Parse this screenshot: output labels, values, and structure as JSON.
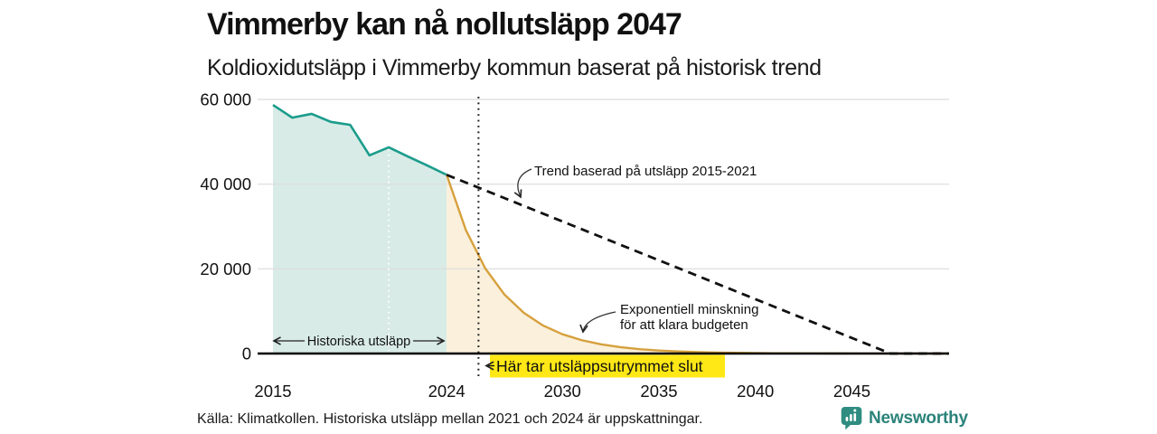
{
  "header": {
    "title": "Vimmerby kan nå nollutsläpp 2047",
    "subtitle": "Koldioxidutsläpp i Vimmerby kommun baserat på historisk trend"
  },
  "footer": {
    "source": "Källa: Klimatkollen. Historiska utsläpp mellan 2021 och 2024 är uppskattningar.",
    "brand": "Newsworthy",
    "brand_icon": "newsworthy-speech-bubble-bars-icon",
    "brand_color": "#2B837A"
  },
  "annotations": {
    "trend_label": "Trend baserad på utsläpp 2015-2021",
    "exp_label_line1": "Exponentiell minskning",
    "exp_label_line2": "för att klara budgeten",
    "historical_label": "Historiska utsläpp",
    "budget_end_label": "Här tar utsläppsutrymmet slut",
    "budget_end_highlight": "#FFE816"
  },
  "colors": {
    "historical_line": "#1B9C8C",
    "historical_fill": "#D8EBE6",
    "budget_line": "#D6A03C",
    "budget_fill": "#FAF0DC",
    "trend_line": "#111111",
    "gridline": "#DCDCDC",
    "axis": "#000000",
    "estimates_marker": "#FFFFFF"
  },
  "chart_data": {
    "type": "area",
    "x_unit": "year",
    "xlim": [
      2015,
      2050
    ],
    "ylim": [
      0,
      60000
    ],
    "xticks": [
      2015,
      2024,
      2030,
      2035,
      2040,
      2045
    ],
    "yticks": [
      0,
      20000,
      40000,
      60000
    ],
    "ytick_labels": [
      "0",
      "20 000",
      "40 000",
      "60 000"
    ],
    "grid": "horizontal",
    "series": [
      {
        "name": "Historiska utsläpp",
        "type": "area",
        "line_color": "#1B9C8C",
        "fill_color": "#D8EBE6",
        "x": [
          2015,
          2016,
          2017,
          2018,
          2019,
          2020,
          2021,
          2022,
          2023,
          2024
        ],
        "values": [
          58700,
          55700,
          56600,
          54700,
          54000,
          46800,
          48700,
          46500,
          44400,
          42200
        ]
      },
      {
        "name": "Exponentiell minskning för att klara budgeten",
        "type": "area",
        "line_color": "#D6A03C",
        "fill_color": "#FAF0DC",
        "x": [
          2024,
          2025,
          2026,
          2027,
          2028,
          2029,
          2030,
          2031,
          2032,
          2033,
          2034,
          2035,
          2036,
          2037,
          2038,
          2039,
          2040,
          2041,
          2042,
          2043,
          2044,
          2045,
          2046,
          2047,
          2048,
          2049,
          2050
        ],
        "values": [
          42200,
          29100,
          20100,
          13900,
          9600,
          6600,
          4550,
          3150,
          2170,
          1500,
          1030,
          710,
          490,
          340,
          235,
          160,
          110,
          77,
          53,
          37,
          25,
          17,
          12,
          8,
          6,
          4,
          3
        ]
      },
      {
        "name": "Trend baserad på utsläpp 2015-2021",
        "type": "line",
        "style": "dashed",
        "line_color": "#111111",
        "x": [
          2024,
          2047,
          2050
        ],
        "values": [
          42200,
          0,
          0
        ]
      }
    ],
    "markers": {
      "estimates_start_year": 2021,
      "budget_end_year": 2025.65,
      "zero_emissions_year": 2047
    }
  }
}
